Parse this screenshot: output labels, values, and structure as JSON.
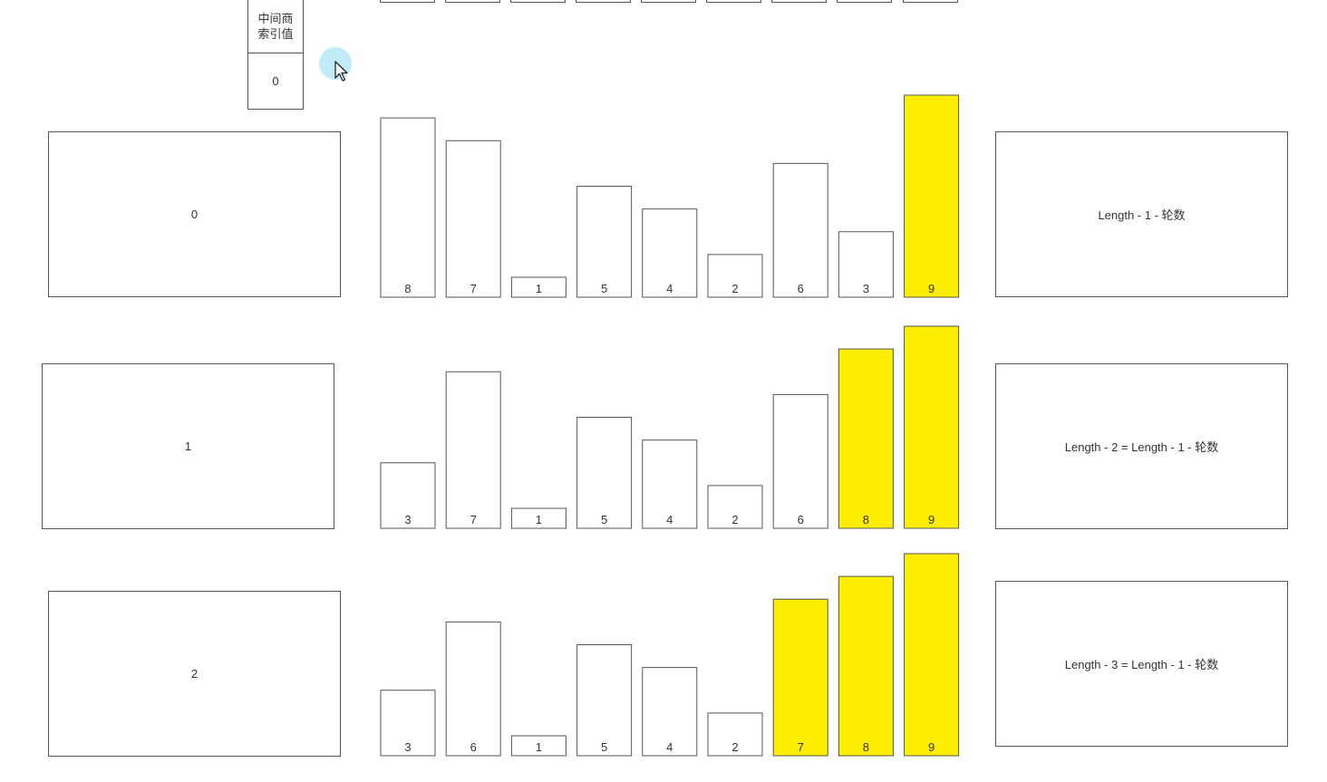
{
  "header": {
    "label": "中间商\n索引值",
    "value": "0"
  },
  "colors": {
    "highlight": "#FFEE00",
    "bar_fill": "#FFFFFF",
    "border": "#555555"
  },
  "rows": [
    {
      "index_label": "0",
      "formula": "Length - 1 - 轮数",
      "bars": [
        {
          "value": 8,
          "highlighted": false
        },
        {
          "value": 7,
          "highlighted": false
        },
        {
          "value": 1,
          "highlighted": false
        },
        {
          "value": 5,
          "highlighted": false
        },
        {
          "value": 4,
          "highlighted": false
        },
        {
          "value": 2,
          "highlighted": false
        },
        {
          "value": 6,
          "highlighted": false
        },
        {
          "value": 3,
          "highlighted": false
        },
        {
          "value": 9,
          "highlighted": true
        }
      ]
    },
    {
      "index_label": "1",
      "formula": "Length - 2 = Length - 1 - 轮数",
      "bars": [
        {
          "value": 3,
          "highlighted": false
        },
        {
          "value": 7,
          "highlighted": false
        },
        {
          "value": 1,
          "highlighted": false
        },
        {
          "value": 5,
          "highlighted": false
        },
        {
          "value": 4,
          "highlighted": false
        },
        {
          "value": 2,
          "highlighted": false
        },
        {
          "value": 6,
          "highlighted": false
        },
        {
          "value": 8,
          "highlighted": true
        },
        {
          "value": 9,
          "highlighted": true
        }
      ]
    },
    {
      "index_label": "2",
      "formula": "Length - 3 = Length - 1 - 轮数",
      "bars": [
        {
          "value": 3,
          "highlighted": false
        },
        {
          "value": 6,
          "highlighted": false
        },
        {
          "value": 1,
          "highlighted": false
        },
        {
          "value": 5,
          "highlighted": false
        },
        {
          "value": 4,
          "highlighted": false
        },
        {
          "value": 2,
          "highlighted": false
        },
        {
          "value": 7,
          "highlighted": true
        },
        {
          "value": 8,
          "highlighted": true
        },
        {
          "value": 9,
          "highlighted": true
        }
      ]
    }
  ]
}
